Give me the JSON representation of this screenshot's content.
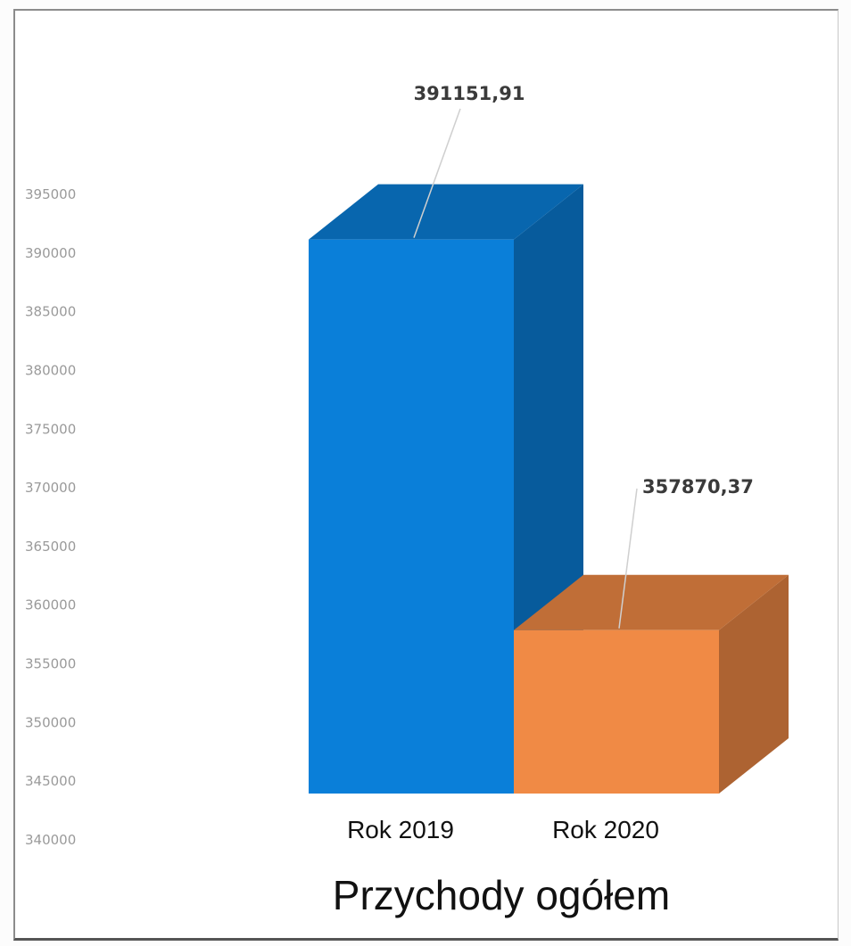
{
  "chart_data": {
    "type": "bar",
    "style": "3d-column",
    "title": "Przychody ogółem",
    "categories": [
      "Rok 2019",
      "Rok 2020"
    ],
    "values": [
      391151.91,
      357870.37
    ],
    "value_labels": [
      "391151,91",
      "357870,37"
    ],
    "colors": [
      "#0a7fd9",
      "#f08a45"
    ],
    "ylim": [
      340000,
      395000
    ],
    "yticks": [
      340000,
      345000,
      350000,
      355000,
      360000,
      365000,
      370000,
      375000,
      380000,
      385000,
      390000,
      395000
    ],
    "ytick_labels": [
      "340000",
      "345000",
      "350000",
      "355000",
      "360000",
      "365000",
      "370000",
      "375000",
      "380000",
      "385000",
      "390000",
      "395000"
    ],
    "grid": false,
    "legend": "none"
  }
}
